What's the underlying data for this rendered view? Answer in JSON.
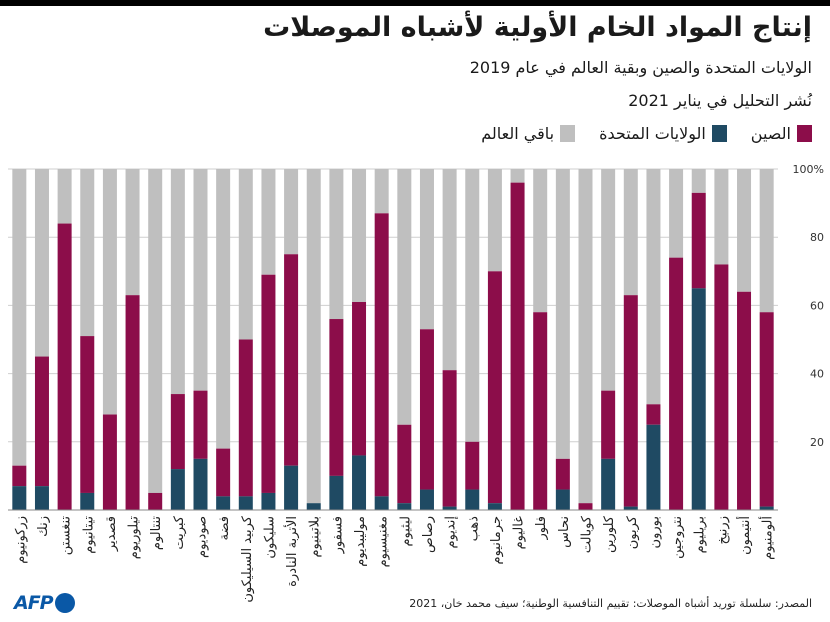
{
  "title": "إنتاج المواد الخام الأولية لأشباه الموصلات",
  "subtitle": "الولايات المتحدة والصين وبقية العالم في عام 2019",
  "published": "نُشر التحليل في يناير 2021",
  "source": "المصدر: سلسلة توريد أشباه الموصلات: تقييم التنافسية الوطنية؛ سيف محمد خان، 2021",
  "logo_text": "AFP",
  "colors": {
    "china": "#8c0d4a",
    "usa": "#1f4a63",
    "rest": "#bfbfbf"
  },
  "chart_data": {
    "type": "bar",
    "stacked": true,
    "ylim": [
      0,
      100
    ],
    "yticks": [
      {
        "value": 20,
        "label": "20"
      },
      {
        "value": 40,
        "label": "40"
      },
      {
        "value": 60,
        "label": "60"
      },
      {
        "value": 80,
        "label": "80"
      },
      {
        "value": 100,
        "label": "100%"
      }
    ],
    "legend": [
      {
        "key": "china",
        "name": "الصين"
      },
      {
        "key": "usa",
        "name": "الولايات المتحدة"
      },
      {
        "key": "rest",
        "name": "باقي العالم"
      }
    ],
    "categories": [
      "زركونيوم",
      "زنك",
      "تنغستن",
      "تيتانيوم",
      "قصدير",
      "تيلوريوم",
      "تنتالوم",
      "كبريت",
      "صوديوم",
      "فضة",
      "كربيد السيليكون",
      "سليكون",
      "الأتربة النادرة",
      "بلاتينيوم",
      "فسفور",
      "موليبديوم",
      "مغنيسيوم",
      "ليثيوم",
      "رصاص",
      "إنديوم",
      "ذهب",
      "جرمانيوم",
      "غاليوم",
      "فلور",
      "نحاس",
      "كوبالت",
      "كلورين",
      "كربون",
      "بورون",
      "نتروجين",
      "بريليوم",
      "زرنيخ",
      "أنتيمون",
      "ألومنيوم"
    ],
    "series": [
      {
        "key": "usa",
        "values": [
          7,
          7,
          0,
          5,
          0,
          0,
          0,
          12,
          15,
          4,
          4,
          5,
          13,
          2,
          10,
          16,
          4,
          2,
          6,
          1,
          6,
          2,
          0,
          0,
          6,
          0,
          15,
          1,
          25,
          0,
          65,
          0,
          0,
          1
        ]
      },
      {
        "key": "china",
        "values": [
          6,
          38,
          84,
          46,
          28,
          63,
          5,
          22,
          20,
          14,
          46,
          64,
          62,
          0,
          46,
          45,
          83,
          23,
          47,
          40,
          14,
          68,
          96,
          58,
          9,
          2,
          20,
          62,
          6,
          74,
          28,
          72,
          64,
          57
        ]
      }
    ]
  }
}
